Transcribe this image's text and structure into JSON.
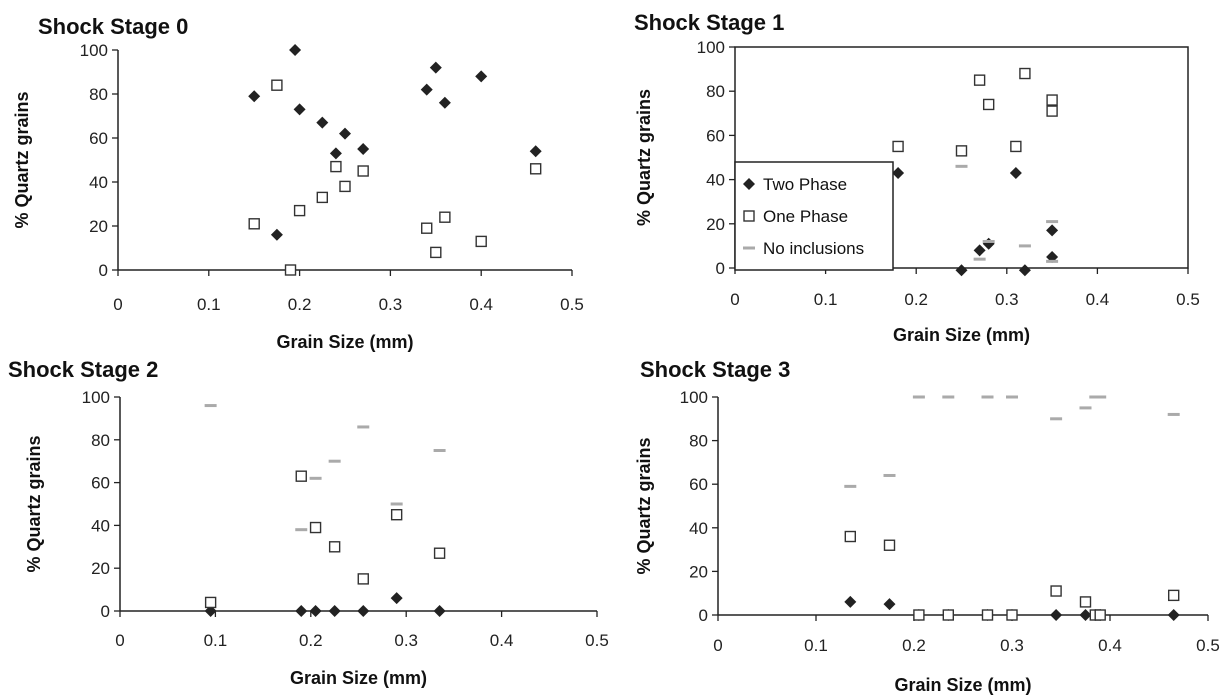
{
  "legend": {
    "two_phase": "Two Phase",
    "one_phase": "One Phase",
    "no_inclusions": "No inclusions"
  },
  "colors": {
    "two_phase": "#222222",
    "one_phase": "#333333",
    "no_inclusions": "#aaaaaa",
    "axis": "#222222"
  },
  "chart_data": [
    {
      "type": "scatter",
      "title": "Shock Stage 0",
      "xlabel": "Grain Size (mm)",
      "ylabel": "% Quartz grains",
      "xlim": [
        0,
        0.5
      ],
      "ylim": [
        0,
        100
      ],
      "xticks": [
        "0",
        "0.1",
        "0.2",
        "0.3",
        "0.4",
        "0.5"
      ],
      "yticks": [
        "0",
        "20",
        "40",
        "60",
        "80",
        "100"
      ],
      "plot_frame": false,
      "legend": null,
      "series": [
        {
          "key": "two_phase",
          "marker": "diamond",
          "points": [
            [
              0.15,
              79
            ],
            [
              0.175,
              16
            ],
            [
              0.195,
              100
            ],
            [
              0.2,
              73
            ],
            [
              0.225,
              67
            ],
            [
              0.24,
              53
            ],
            [
              0.25,
              62
            ],
            [
              0.27,
              55
            ],
            [
              0.34,
              82
            ],
            [
              0.35,
              92
            ],
            [
              0.36,
              76
            ],
            [
              0.4,
              88
            ],
            [
              0.46,
              54
            ]
          ]
        },
        {
          "key": "one_phase",
          "marker": "square",
          "points": [
            [
              0.15,
              21
            ],
            [
              0.175,
              84
            ],
            [
              0.19,
              0
            ],
            [
              0.2,
              27
            ],
            [
              0.225,
              33
            ],
            [
              0.24,
              47
            ],
            [
              0.25,
              38
            ],
            [
              0.27,
              45
            ],
            [
              0.34,
              19
            ],
            [
              0.35,
              8
            ],
            [
              0.36,
              24
            ],
            [
              0.4,
              13
            ],
            [
              0.46,
              46
            ]
          ]
        }
      ]
    },
    {
      "type": "scatter",
      "title": "Shock Stage 1",
      "xlabel": "Grain Size (mm)",
      "ylabel": "% Quartz grains",
      "xlim": [
        0,
        0.5
      ],
      "ylim": [
        0,
        100
      ],
      "xticks": [
        "0",
        "0.1",
        "0.2",
        "0.3",
        "0.4",
        "0.5"
      ],
      "yticks": [
        "0",
        "20",
        "40",
        "60",
        "80",
        "100"
      ],
      "plot_frame": true,
      "legend": "left",
      "series": [
        {
          "key": "two_phase",
          "marker": "diamond",
          "points": [
            [
              0.18,
              43
            ],
            [
              0.25,
              -1
            ],
            [
              0.27,
              8
            ],
            [
              0.28,
              11
            ],
            [
              0.31,
              43
            ],
            [
              0.32,
              -1
            ],
            [
              0.35,
              17
            ],
            [
              0.35,
              5
            ]
          ]
        },
        {
          "key": "one_phase",
          "marker": "square",
          "points": [
            [
              0.18,
              55
            ],
            [
              0.25,
              53
            ],
            [
              0.27,
              85
            ],
            [
              0.28,
              74
            ],
            [
              0.31,
              55
            ],
            [
              0.32,
              88
            ],
            [
              0.35,
              76
            ],
            [
              0.35,
              71
            ]
          ]
        },
        {
          "key": "no_inclusions",
          "marker": "dash",
          "points": [
            [
              0.25,
              46
            ],
            [
              0.27,
              4
            ],
            [
              0.28,
              12
            ],
            [
              0.32,
              10
            ],
            [
              0.35,
              21
            ],
            [
              0.35,
              3
            ]
          ]
        }
      ]
    },
    {
      "type": "scatter",
      "title": "Shock Stage 2",
      "xlabel": "Grain Size (mm)",
      "ylabel": "% Quartz grains",
      "xlim": [
        0,
        0.5
      ],
      "ylim": [
        0,
        100
      ],
      "xticks": [
        "0",
        "0.1",
        "0.2",
        "0.3",
        "0.4",
        "0.5"
      ],
      "yticks": [
        "0",
        "20",
        "40",
        "60",
        "80",
        "100"
      ],
      "plot_frame": false,
      "legend": null,
      "series": [
        {
          "key": "two_phase",
          "marker": "diamond",
          "points": [
            [
              0.095,
              0
            ],
            [
              0.19,
              0
            ],
            [
              0.205,
              0
            ],
            [
              0.225,
              0
            ],
            [
              0.255,
              0
            ],
            [
              0.29,
              6
            ],
            [
              0.335,
              0
            ]
          ]
        },
        {
          "key": "one_phase",
          "marker": "square",
          "points": [
            [
              0.095,
              4
            ],
            [
              0.19,
              63
            ],
            [
              0.205,
              39
            ],
            [
              0.225,
              30
            ],
            [
              0.255,
              15
            ],
            [
              0.29,
              45
            ],
            [
              0.335,
              27
            ]
          ]
        },
        {
          "key": "no_inclusions",
          "marker": "dash",
          "points": [
            [
              0.095,
              96
            ],
            [
              0.19,
              38
            ],
            [
              0.205,
              62
            ],
            [
              0.225,
              70
            ],
            [
              0.255,
              86
            ],
            [
              0.29,
              50
            ],
            [
              0.335,
              75
            ]
          ]
        }
      ]
    },
    {
      "type": "scatter",
      "title": "Shock Stage 3",
      "xlabel": "Grain Size (mm)",
      "ylabel": "% Quartz grains",
      "xlim": [
        0,
        0.5
      ],
      "ylim": [
        0,
        100
      ],
      "xticks": [
        "0",
        "0.1",
        "0.2",
        "0.3",
        "0.4",
        "0.5"
      ],
      "yticks": [
        "0",
        "20",
        "40",
        "60",
        "80",
        "100"
      ],
      "plot_frame": false,
      "legend": null,
      "series": [
        {
          "key": "two_phase",
          "marker": "diamond",
          "points": [
            [
              0.135,
              6
            ],
            [
              0.175,
              5
            ],
            [
              0.205,
              0
            ],
            [
              0.235,
              0
            ],
            [
              0.275,
              0
            ],
            [
              0.3,
              0
            ],
            [
              0.345,
              0
            ],
            [
              0.375,
              0
            ],
            [
              0.385,
              0
            ],
            [
              0.39,
              0
            ],
            [
              0.465,
              0
            ]
          ]
        },
        {
          "key": "one_phase",
          "marker": "square",
          "points": [
            [
              0.135,
              36
            ],
            [
              0.175,
              32
            ],
            [
              0.205,
              0
            ],
            [
              0.235,
              0
            ],
            [
              0.275,
              0
            ],
            [
              0.3,
              0
            ],
            [
              0.345,
              11
            ],
            [
              0.375,
              6
            ],
            [
              0.385,
              0
            ],
            [
              0.39,
              0
            ],
            [
              0.465,
              9
            ]
          ]
        },
        {
          "key": "no_inclusions",
          "marker": "dash",
          "points": [
            [
              0.135,
              59
            ],
            [
              0.175,
              64
            ],
            [
              0.205,
              100
            ],
            [
              0.235,
              100
            ],
            [
              0.275,
              100
            ],
            [
              0.3,
              100
            ],
            [
              0.345,
              90
            ],
            [
              0.375,
              95
            ],
            [
              0.385,
              100
            ],
            [
              0.39,
              100
            ],
            [
              0.465,
              92
            ]
          ]
        }
      ]
    }
  ]
}
